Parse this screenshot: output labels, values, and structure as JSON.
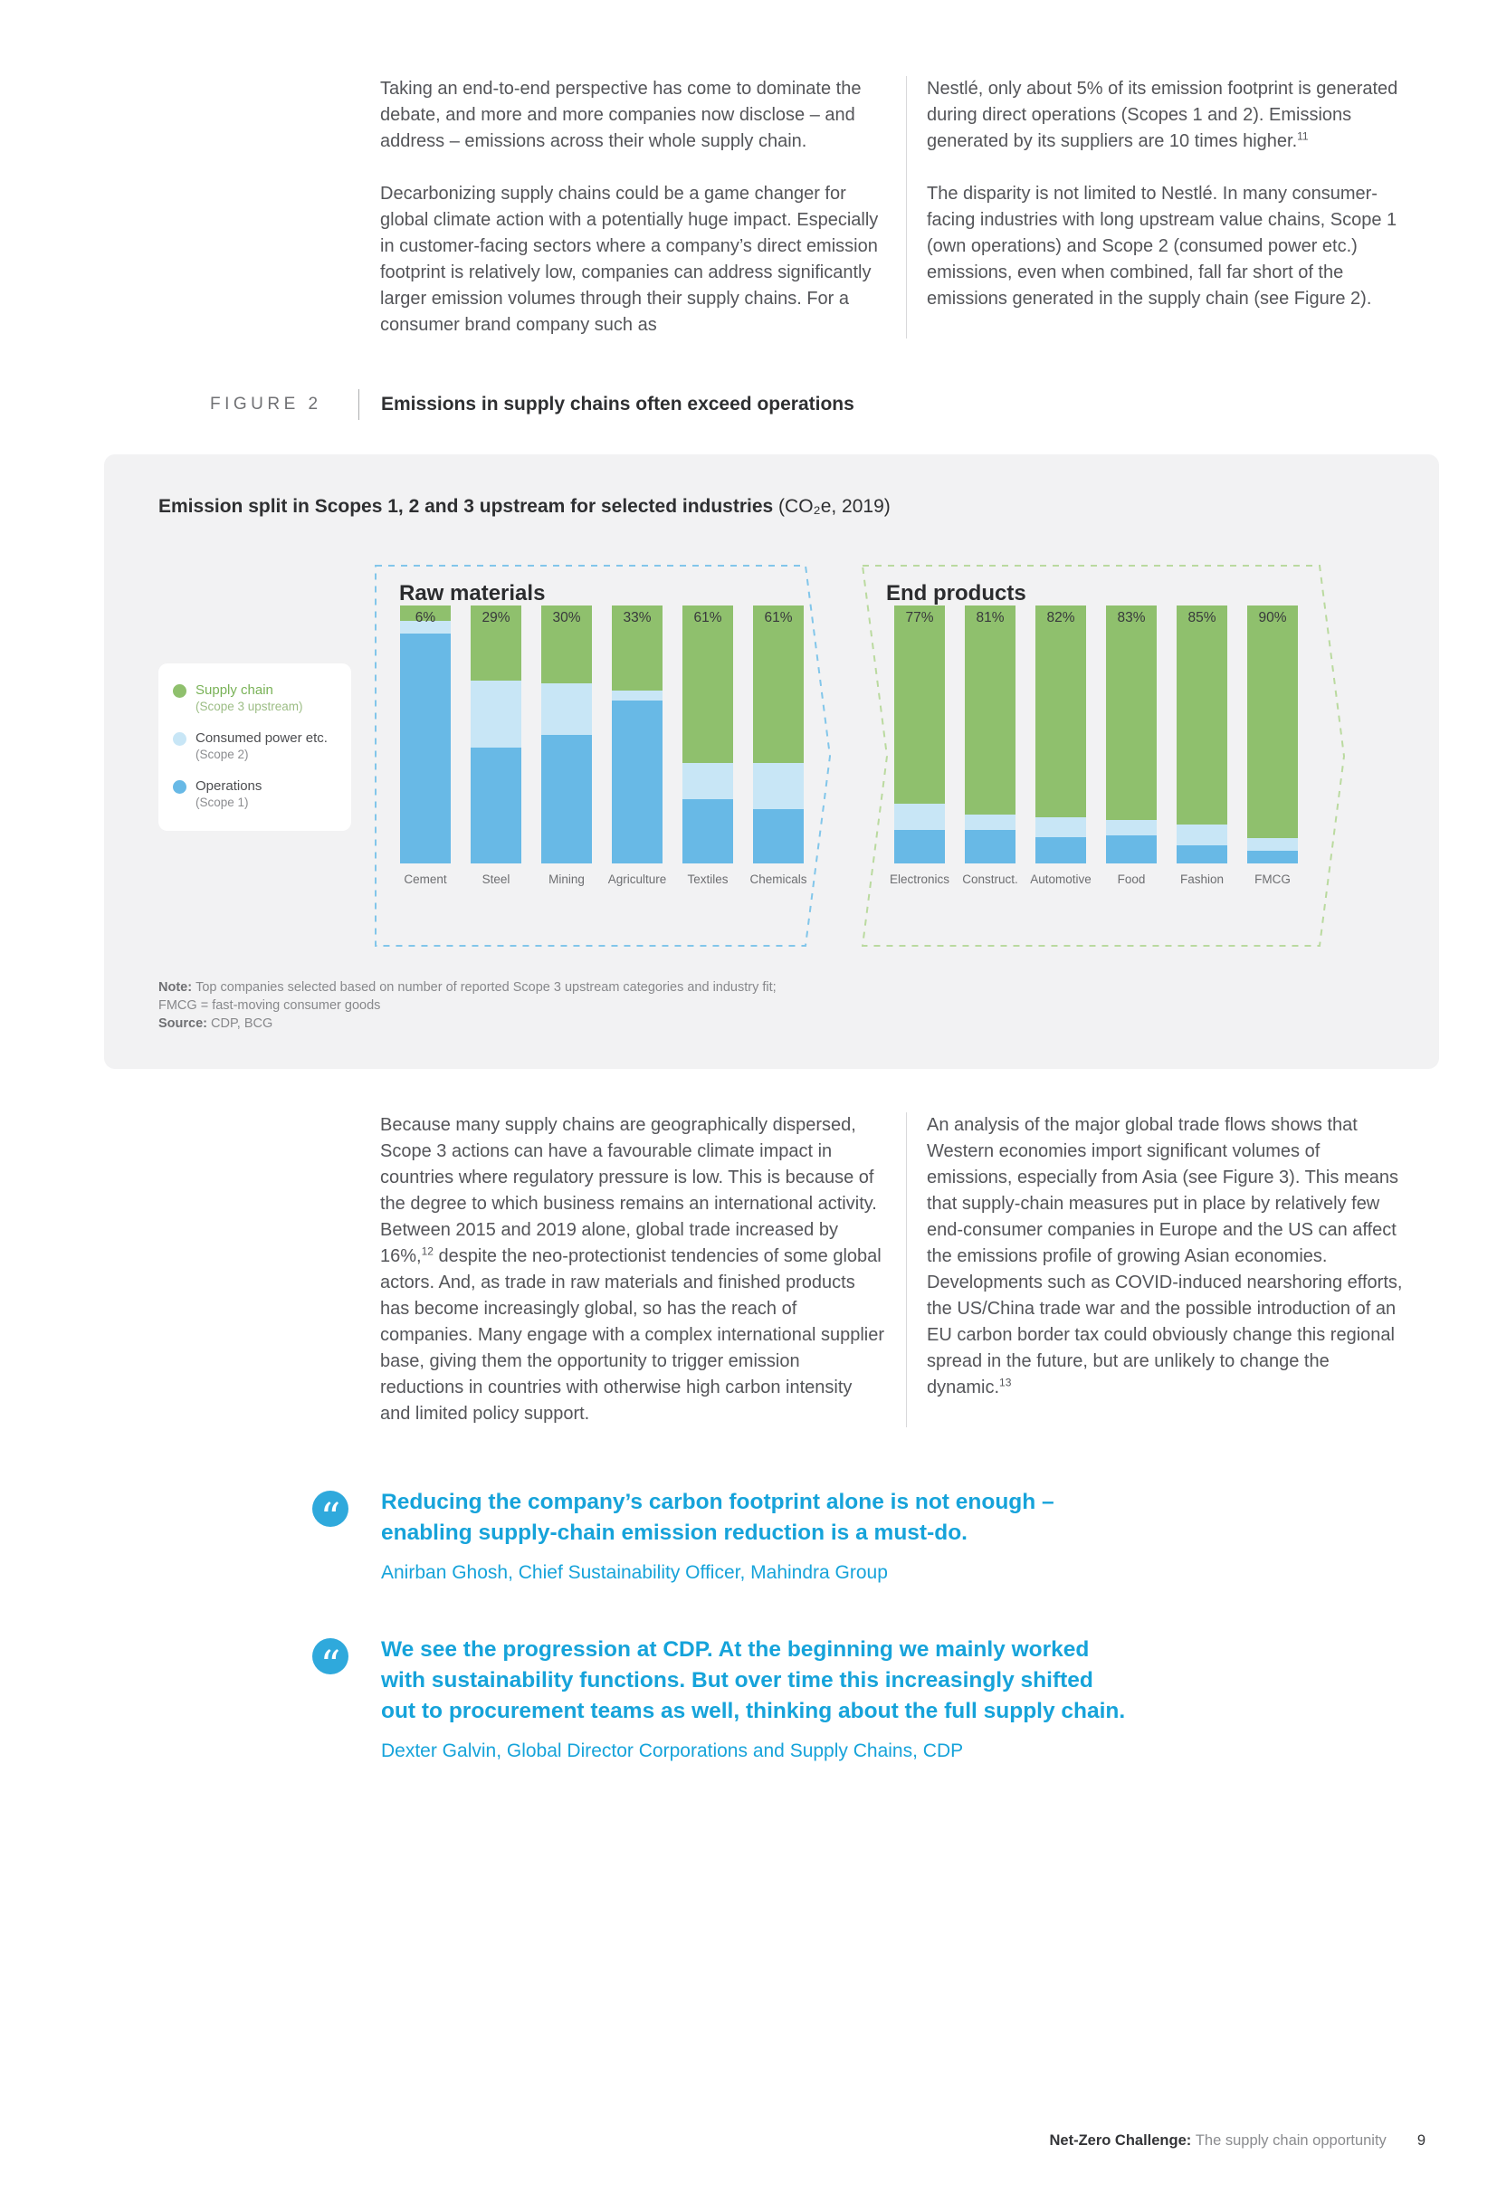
{
  "intro": {
    "col1": {
      "p1": "Taking an end-to-end perspective has come to dominate the debate, and more and more companies now disclose – and address – emissions across their whole supply chain.",
      "p2": "Decarbonizing supply chains could be a game changer for global climate action with a potentially huge impact. Especially in customer-facing sectors where a company’s direct emission footprint is relatively low, companies can address significantly larger emission volumes through their supply chains. For a consumer brand company such as"
    },
    "col2": {
      "p1": "Nestlé, only about 5% of its emission footprint is generated during direct operations (Scopes 1 and 2). Emissions generated by its suppliers are 10 times higher.",
      "p1_footnote": "11",
      "p2": "The disparity is not limited to Nestlé. In many consumer-facing industries with long upstream value chains, Scope 1 (own operations) and Scope 2 (consumed power etc.) emissions, even when combined, fall far short of the emissions generated in the supply chain (see Figure 2)."
    }
  },
  "figure": {
    "label": "FIGURE 2",
    "title": "Emissions in supply chains often exceed operations",
    "panel": {
      "title_bold": "Emission split in Scopes 1, 2 and 3 upstream for selected industries ",
      "title_suffix": "(CO₂e, 2019)",
      "note_label": "Note: ",
      "note_line1": "Top companies selected based on number of reported Scope 3 upstream categories and industry fit;",
      "note_line2": "FMCG = fast-moving consumer goods",
      "source_label": "Source: ",
      "source_text": "CDP, BCG"
    }
  },
  "chart_data": {
    "type": "bar",
    "variant": "stacked-100-percent",
    "title": "Emission split in Scopes 1, 2 and 3 upstream for selected industries (CO₂e, 2019)",
    "unit": "%",
    "value_labels_meaning": "Scope 3 upstream (supply chain) share of total emissions",
    "ylim": [
      0,
      100
    ],
    "grid": false,
    "legend_position": "left",
    "colors": {
      "scope3": "#8fc06d",
      "scope2": "#c8e6f6",
      "scope1": "#68b9e6"
    },
    "legend": [
      {
        "label": "Supply chain",
        "sublabel": "(Scope 3 upstream)",
        "color": "#8fc06d",
        "label_color": "#79b257",
        "sub_color": "#9cbd85"
      },
      {
        "label": "Consumed power etc.",
        "sublabel": "(Scope 2)",
        "color": "#c8e6f6",
        "label_color": "#4c4d50",
        "sub_color": "#8c8d90"
      },
      {
        "label": "Operations",
        "sublabel": "(Scope 1)",
        "color": "#68b9e6",
        "label_color": "#4c4d50",
        "sub_color": "#8c8d90"
      }
    ],
    "groups": [
      {
        "name": "Raw materials",
        "outline_color": "#82c6ea",
        "bars": [
          {
            "category": "Cement",
            "share_label": "6%",
            "scope3": 6,
            "scope2": 5,
            "scope1": 89
          },
          {
            "category": "Steel",
            "share_label": "29%",
            "scope3": 29,
            "scope2": 26,
            "scope1": 45
          },
          {
            "category": "Mining",
            "share_label": "30%",
            "scope3": 30,
            "scope2": 20,
            "scope1": 50
          },
          {
            "category": "Agriculture",
            "share_label": "33%",
            "scope3": 33,
            "scope2": 4,
            "scope1": 63
          },
          {
            "category": "Textiles",
            "share_label": "61%",
            "scope3": 61,
            "scope2": 14,
            "scope1": 25
          },
          {
            "category": "Chemicals",
            "share_label": "61%",
            "scope3": 61,
            "scope2": 18,
            "scope1": 21
          }
        ]
      },
      {
        "name": "End products",
        "outline_color": "#bada9f",
        "bars": [
          {
            "category": "Electronics",
            "share_label": "77%",
            "scope3": 77,
            "scope2": 10,
            "scope1": 13
          },
          {
            "category": "Construct.",
            "share_label": "81%",
            "scope3": 81,
            "scope2": 6,
            "scope1": 13
          },
          {
            "category": "Automotive",
            "share_label": "82%",
            "scope3": 82,
            "scope2": 8,
            "scope1": 10
          },
          {
            "category": "Food",
            "share_label": "83%",
            "scope3": 83,
            "scope2": 6,
            "scope1": 11
          },
          {
            "category": "Fashion",
            "share_label": "85%",
            "scope3": 85,
            "scope2": 8,
            "scope1": 7
          },
          {
            "category": "FMCG",
            "share_label": "90%",
            "scope3": 90,
            "scope2": 5,
            "scope1": 5
          }
        ]
      }
    ]
  },
  "body": {
    "col1": {
      "p1_part1": "Because many supply chains are geographically dispersed, Scope 3 actions can have a favourable climate impact in countries where regulatory pressure is low. This is because of the degree to which business remains an international activity. Between 2015 and 2019 alone, global trade increased by 16%,",
      "p1_footnote": "12",
      "p1_part2": " despite the neo-protectionist tendencies of some global actors. And, as trade in raw materials and finished products has become increasingly global, so has the reach of companies. Many engage with a complex international supplier base, giving them the opportunity to trigger emission reductions in countries with otherwise high carbon intensity and limited policy support."
    },
    "col2": {
      "p1": "An analysis of the major global trade flows shows that Western economies import significant volumes of emissions, especially from Asia (see Figure 3). This means that supply-chain measures put in place by relatively few end-consumer companies in Europe and the US can affect the emissions profile of growing Asian economies. Developments such as COVID-induced nearshoring efforts, the US/China trade war and the possible introduction of an EU carbon border tax could obviously change this regional spread in the future, but are unlikely to change the dynamic.",
      "p1_footnote": "13"
    }
  },
  "quotes": [
    {
      "text": "Reducing the company’s carbon footprint alone is not enough – enabling supply-chain emission reduction is a must-do.",
      "attribution": "Anirban Ghosh, Chief Sustainability Officer, Mahindra Group"
    },
    {
      "text": "We see the progression at CDP. At the beginning we mainly worked with sustainability functions. But over time this increasingly shifted out to procurement teams as well, thinking about the full supply chain.",
      "attribution": "Dexter Galvin, Global Director Corporations and Supply Chains, CDP"
    }
  ],
  "icons": {
    "quote_glyph": "“"
  },
  "footer": {
    "brand": "Net-Zero Challenge: ",
    "title": "The supply chain opportunity",
    "page_number": "9"
  }
}
